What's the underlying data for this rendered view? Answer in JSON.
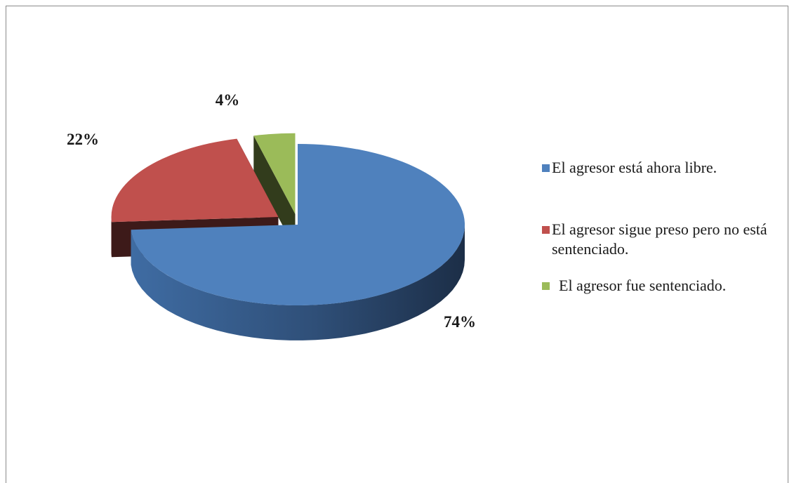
{
  "chart_data": {
    "type": "pie",
    "title": "",
    "slices": [
      {
        "label": "El agresor está ahora libre.",
        "value": 74,
        "data_label": "74%",
        "color": "#4F81BD"
      },
      {
        "label": "El agresor sigue preso pero no está sentenciado.",
        "value": 22,
        "data_label": "22%",
        "color": "#C0504D"
      },
      {
        "label": "El agresor fue sentenciado.",
        "value": 4,
        "data_label": "4%",
        "color": "#9BBB59"
      }
    ],
    "legend_position": "right",
    "style": "3d-exploded"
  }
}
